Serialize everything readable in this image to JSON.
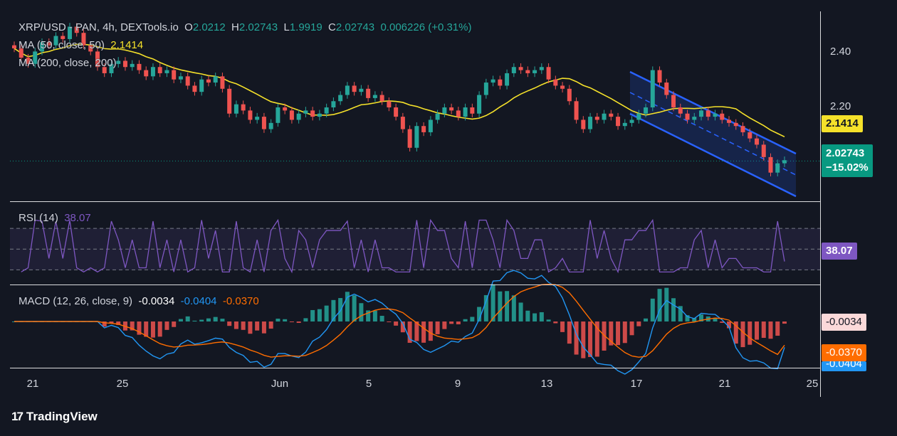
{
  "header": {
    "symbol": "XRP/USD - PAN, 4h, DEXTools.io",
    "ohlc": {
      "o_label": "O",
      "o": "2.0212",
      "h_label": "H",
      "h": "2.02743",
      "l_label": "L",
      "l": "1.9919",
      "c_label": "C",
      "c": "2.02743",
      "change": "0.006226 (+0.31%)"
    }
  },
  "ma50": {
    "label": "MA (50, close, 50)",
    "value": "2.1414",
    "color": "#f5e12a"
  },
  "ma200": {
    "label": "MA (200, close, 200)",
    "value": ""
  },
  "rsi": {
    "label": "RSI (14)",
    "value": "38.07",
    "color": "#7e57c2"
  },
  "macd": {
    "label": "MACD (12, 26, close, 9)",
    "hist": "-0.0034",
    "macd": "-0.0404",
    "signal": "-0.0370",
    "macd_color": "#2196f3",
    "signal_color": "#ff6d00"
  },
  "price_axis": {
    "ticks": [
      "2.40",
      "2.20"
    ],
    "ma_tag": "2.1414",
    "last_price": "2.02743",
    "last_change": "−15.02%"
  },
  "rsi_axis": {
    "tag": "38.07"
  },
  "macd_axis": {
    "hist_tag": "-0.0034",
    "signal_tag": "-0.0370",
    "macd_tag": "-0.0404"
  },
  "time_axis": {
    "labels": [
      "21",
      "25",
      "Jun",
      "5",
      "9",
      "13",
      "17",
      "21",
      "25"
    ]
  },
  "branding": {
    "name": "TradingView"
  },
  "colors": {
    "up": "#26a69a",
    "down": "#ef5350",
    "background": "#131722",
    "channel": "#2962ff"
  },
  "chart_data": {
    "type": "candlestick",
    "timeframe": "4h",
    "ylim": [
      1.9,
      2.5
    ],
    "price_ticks": [
      2.4,
      2.2
    ],
    "x_labels": [
      "21",
      "25",
      "Jun",
      "5",
      "9",
      "13",
      "17",
      "21",
      "25"
    ],
    "closes": [
      2.39,
      2.36,
      2.34,
      2.38,
      2.41,
      2.4,
      2.43,
      2.42,
      2.46,
      2.44,
      2.4,
      2.38,
      2.33,
      2.31,
      2.34,
      2.35,
      2.33,
      2.34,
      2.32,
      2.3,
      2.33,
      2.31,
      2.32,
      2.29,
      2.3,
      2.27,
      2.25,
      2.29,
      2.28,
      2.3,
      2.26,
      2.18,
      2.21,
      2.19,
      2.16,
      2.17,
      2.13,
      2.15,
      2.2,
      2.19,
      2.16,
      2.18,
      2.19,
      2.17,
      2.18,
      2.2,
      2.22,
      2.24,
      2.27,
      2.25,
      2.26,
      2.23,
      2.24,
      2.22,
      2.2,
      2.17,
      2.13,
      2.07,
      2.14,
      2.12,
      2.16,
      2.18,
      2.2,
      2.19,
      2.17,
      2.2,
      2.18,
      2.24,
      2.28,
      2.29,
      2.27,
      2.31,
      2.33,
      2.32,
      2.31,
      2.32,
      2.33,
      2.29,
      2.27,
      2.26,
      2.22,
      2.16,
      2.13,
      2.17,
      2.16,
      2.18,
      2.17,
      2.14,
      2.15,
      2.16,
      2.18,
      2.2,
      2.32,
      2.28,
      2.24,
      2.2,
      2.18,
      2.16,
      2.17,
      2.19,
      2.17,
      2.18,
      2.16,
      2.15,
      2.14,
      2.12,
      2.1,
      2.08,
      2.04,
      1.99,
      2.02,
      2.03
    ],
    "ma50": {
      "name": "MA (50, close, 50)",
      "last": 2.1414
    },
    "ma200_label": "MA (200, close, 200)",
    "last_close": 2.02743,
    "change_pct": "−15.02%",
    "rsi": {
      "period": 14,
      "last": 38.07,
      "levels": [
        70,
        50,
        30
      ]
    },
    "macd": {
      "fast": 12,
      "slow": 26,
      "signal": 9,
      "histogram": -0.0034,
      "macd": -0.0404,
      "signal_line": -0.037
    }
  }
}
